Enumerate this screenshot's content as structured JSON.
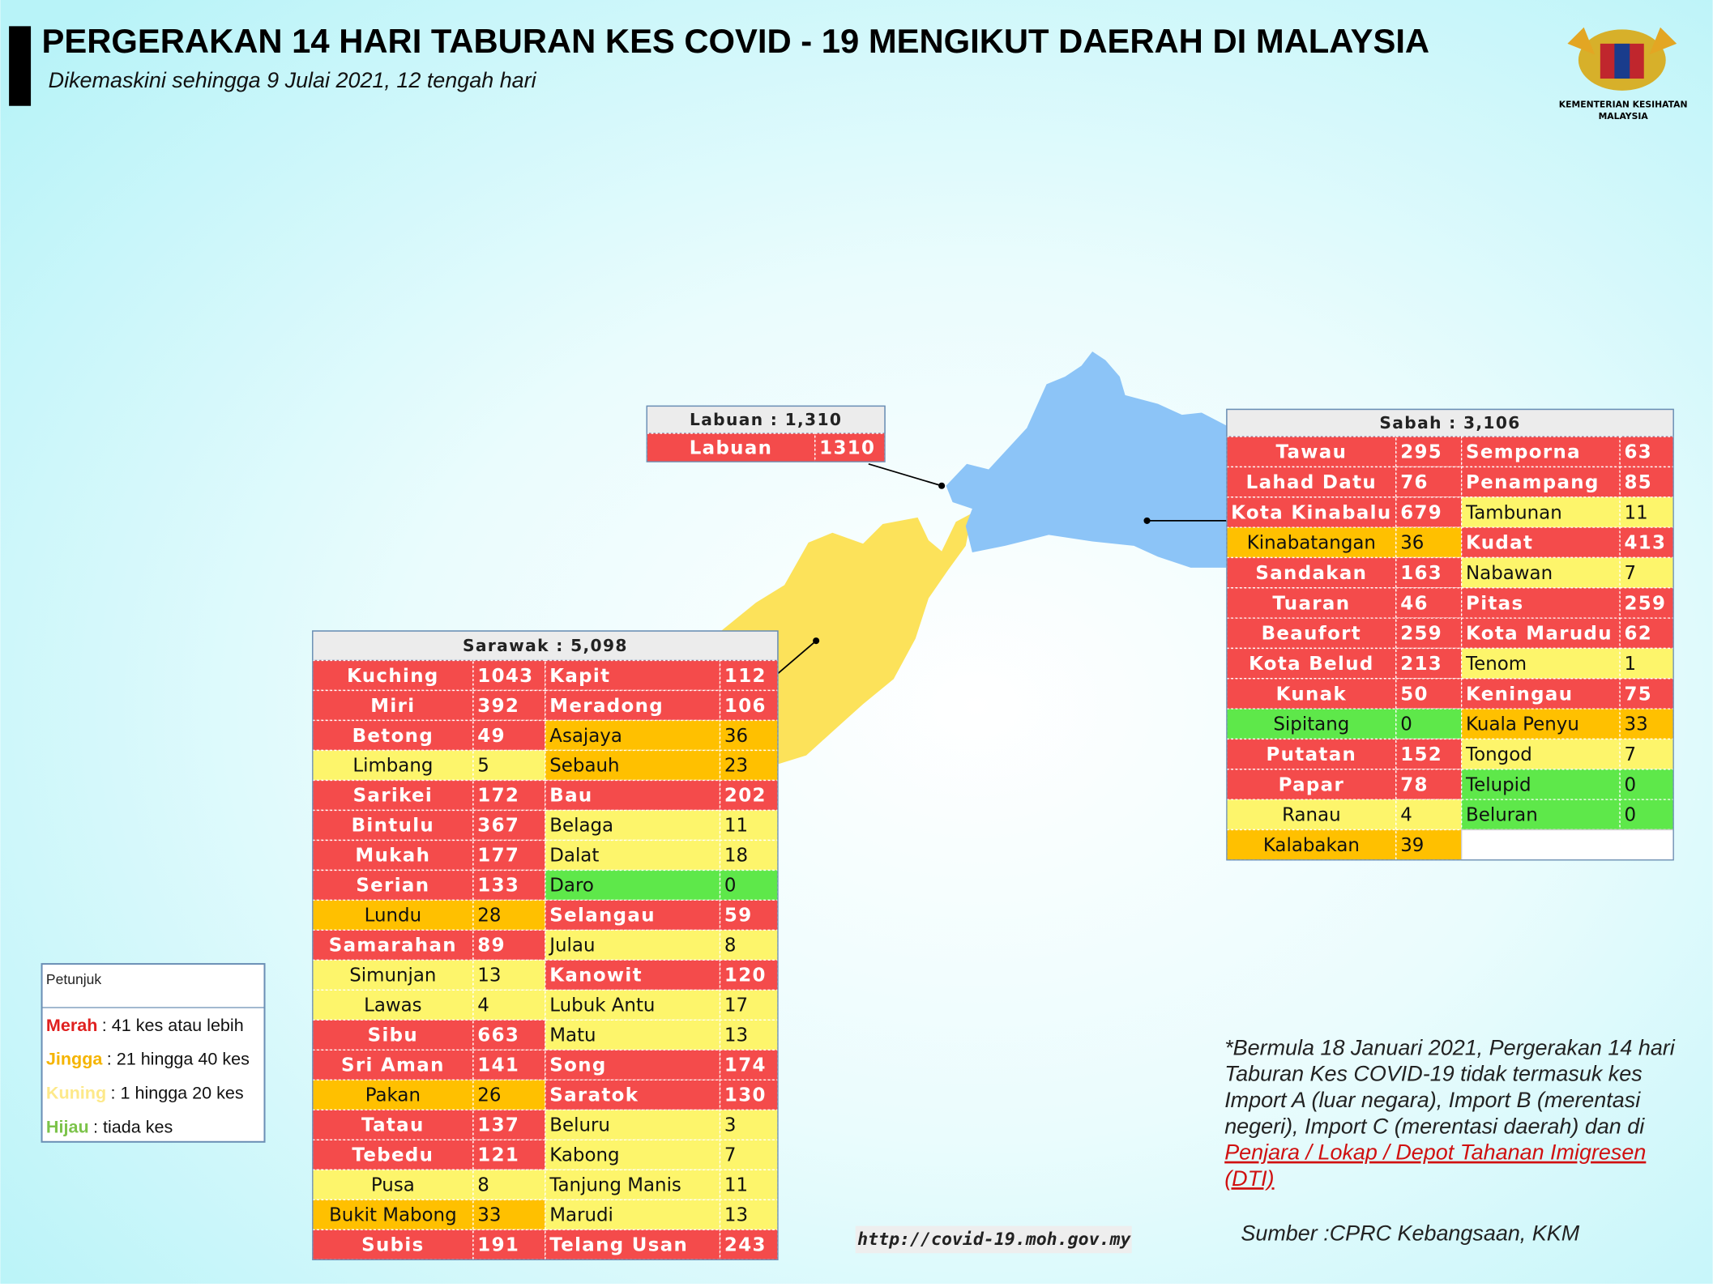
{
  "header": {
    "title": "PERGERAKAN 14 HARI TABURAN KES COVID - 19 MENGIKUT DAERAH DI MALAYSIA",
    "subtitle": "Dikemaskini sehingga 9 Julai 2021, 12 tengah hari",
    "logo_lines": [
      "KEMENTERIAN KESIHATAN",
      "MALAYSIA"
    ]
  },
  "labuan": {
    "title": "Labuan : 1,310",
    "districts": [
      {
        "name": "Labuan",
        "value": 1310,
        "color": "#f44b4b"
      }
    ]
  },
  "sabah": {
    "title": "Sabah : 3,106",
    "districts": [
      {
        "name": "Tawau",
        "value": 295,
        "color": "#f44b4b"
      },
      {
        "name": "Lahad Datu",
        "value": 76,
        "color": "#f44b4b"
      },
      {
        "name": "Kota Kinabalu",
        "value": 679,
        "color": "#f44b4b"
      },
      {
        "name": "Kinabatangan",
        "value": 36,
        "color": "#ffc000"
      },
      {
        "name": "Sandakan",
        "value": 163,
        "color": "#f44b4b"
      },
      {
        "name": "Tuaran",
        "value": 46,
        "color": "#f44b4b"
      },
      {
        "name": "Beaufort",
        "value": 259,
        "color": "#f44b4b"
      },
      {
        "name": "Kota Belud",
        "value": 213,
        "color": "#f44b4b"
      },
      {
        "name": "Kunak",
        "value": 50,
        "color": "#f44b4b"
      },
      {
        "name": "Sipitang",
        "value": 0,
        "color": "#5ee84a"
      },
      {
        "name": "Putatan",
        "value": 152,
        "color": "#f44b4b"
      },
      {
        "name": "Papar",
        "value": 78,
        "color": "#f44b4b"
      },
      {
        "name": "Ranau",
        "value": 4,
        "color": "#fdf56b"
      },
      {
        "name": "Kalabakan",
        "value": 39,
        "color": "#ffc000"
      },
      {
        "name": "Semporna",
        "value": 63,
        "color": "#f44b4b"
      },
      {
        "name": "Penampang",
        "value": 85,
        "color": "#f44b4b"
      },
      {
        "name": "Tambunan",
        "value": 11,
        "color": "#fdf56b"
      },
      {
        "name": "Kudat",
        "value": 413,
        "color": "#f44b4b"
      },
      {
        "name": "Nabawan",
        "value": 7,
        "color": "#fdf56b"
      },
      {
        "name": "Pitas",
        "value": 259,
        "color": "#f44b4b"
      },
      {
        "name": "Kota Marudu",
        "value": 62,
        "color": "#f44b4b"
      },
      {
        "name": "Tenom",
        "value": 1,
        "color": "#fdf56b"
      },
      {
        "name": "Keningau",
        "value": 75,
        "color": "#f44b4b"
      },
      {
        "name": "Kuala Penyu",
        "value": 33,
        "color": "#ffc000"
      },
      {
        "name": "Tongod",
        "value": 7,
        "color": "#fdf56b"
      },
      {
        "name": "Telupid",
        "value": 0,
        "color": "#5ee84a"
      },
      {
        "name": "Beluran",
        "value": 0,
        "color": "#5ee84a"
      }
    ]
  },
  "sarawak": {
    "title": "Sarawak : 5,098",
    "districts": [
      {
        "name": "Kuching",
        "value": 1043,
        "color": "#f44b4b"
      },
      {
        "name": "Miri",
        "value": 392,
        "color": "#f44b4b"
      },
      {
        "name": "Betong",
        "value": 49,
        "color": "#f44b4b"
      },
      {
        "name": "Limbang",
        "value": 5,
        "color": "#fdf56b"
      },
      {
        "name": "Sarikei",
        "value": 172,
        "color": "#f44b4b"
      },
      {
        "name": "Bintulu",
        "value": 367,
        "color": "#f44b4b"
      },
      {
        "name": "Mukah",
        "value": 177,
        "color": "#f44b4b"
      },
      {
        "name": "Serian",
        "value": 133,
        "color": "#f44b4b"
      },
      {
        "name": "Lundu",
        "value": 28,
        "color": "#ffc000"
      },
      {
        "name": "Samarahan",
        "value": 89,
        "color": "#f44b4b"
      },
      {
        "name": "Simunjan",
        "value": 13,
        "color": "#fdf56b"
      },
      {
        "name": "Lawas",
        "value": 4,
        "color": "#fdf56b"
      },
      {
        "name": "Sibu",
        "value": 663,
        "color": "#f44b4b"
      },
      {
        "name": "Sri Aman",
        "value": 141,
        "color": "#f44b4b"
      },
      {
        "name": "Pakan",
        "value": 26,
        "color": "#ffc000"
      },
      {
        "name": "Tatau",
        "value": 137,
        "color": "#f44b4b"
      },
      {
        "name": "Tebedu",
        "value": 121,
        "color": "#f44b4b"
      },
      {
        "name": "Pusa",
        "value": 8,
        "color": "#fdf56b"
      },
      {
        "name": "Bukit Mabong",
        "value": 33,
        "color": "#ffc000"
      },
      {
        "name": "Subis",
        "value": 191,
        "color": "#f44b4b"
      },
      {
        "name": "Kapit",
        "value": 112,
        "color": "#f44b4b"
      },
      {
        "name": "Meradong",
        "value": 106,
        "color": "#f44b4b"
      },
      {
        "name": "Asajaya",
        "value": 36,
        "color": "#ffc000"
      },
      {
        "name": "Sebauh",
        "value": 23,
        "color": "#ffc000"
      },
      {
        "name": "Bau",
        "value": 202,
        "color": "#f44b4b"
      },
      {
        "name": "Belaga",
        "value": 11,
        "color": "#fdf56b"
      },
      {
        "name": "Dalat",
        "value": 18,
        "color": "#fdf56b"
      },
      {
        "name": "Daro",
        "value": 0,
        "color": "#5ee84a"
      },
      {
        "name": "Selangau",
        "value": 59,
        "color": "#f44b4b"
      },
      {
        "name": "Julau",
        "value": 8,
        "color": "#fdf56b"
      },
      {
        "name": "Kanowit",
        "value": 120,
        "color": "#f44b4b"
      },
      {
        "name": "Lubuk Antu",
        "value": 17,
        "color": "#fdf56b"
      },
      {
        "name": "Matu",
        "value": 13,
        "color": "#fdf56b"
      },
      {
        "name": "Song",
        "value": 174,
        "color": "#f44b4b"
      },
      {
        "name": "Saratok",
        "value": 130,
        "color": "#f44b4b"
      },
      {
        "name": "Beluru",
        "value": 3,
        "color": "#fdf56b"
      },
      {
        "name": "Kabong",
        "value": 7,
        "color": "#fdf56b"
      },
      {
        "name": "Tanjung Manis",
        "value": 11,
        "color": "#fdf56b"
      },
      {
        "name": "Marudi",
        "value": 13,
        "color": "#fdf56b"
      },
      {
        "name": "Telang Usan",
        "value": 243,
        "color": "#f44b4b"
      }
    ]
  },
  "legend": {
    "title": "Petunjuk",
    "items": [
      {
        "label": "Merah",
        "text": ": 41 kes atau lebih",
        "color": "#e0201f"
      },
      {
        "label": "Jingga",
        "text": ": 21 hingga 40 kes",
        "color": "#f5b400"
      },
      {
        "label": "Kuning",
        "text": ": 1 hingga 20 kes",
        "color": "#fde98a"
      },
      {
        "label": "Hijau",
        "text": ": tiada kes",
        "color": "#7cc34a"
      }
    ]
  },
  "footnote": {
    "lines": [
      "*Bermula 18 Januari 2021, Pergerakan 14 hari",
      "Taburan Kes COVID-19 tidak termasuk kes",
      "Import A (luar negara), Import B (merentasi",
      "negeri), Import C (merentasi daerah) dan di"
    ],
    "link_lines": [
      "Penjara / Lokap / Depot Tahanan Imigresen",
      "(DTI)"
    ]
  },
  "source": "Sumber :CPRC Kebangsaan,  KKM",
  "url": "http://covid-19.moh.gov.my"
}
